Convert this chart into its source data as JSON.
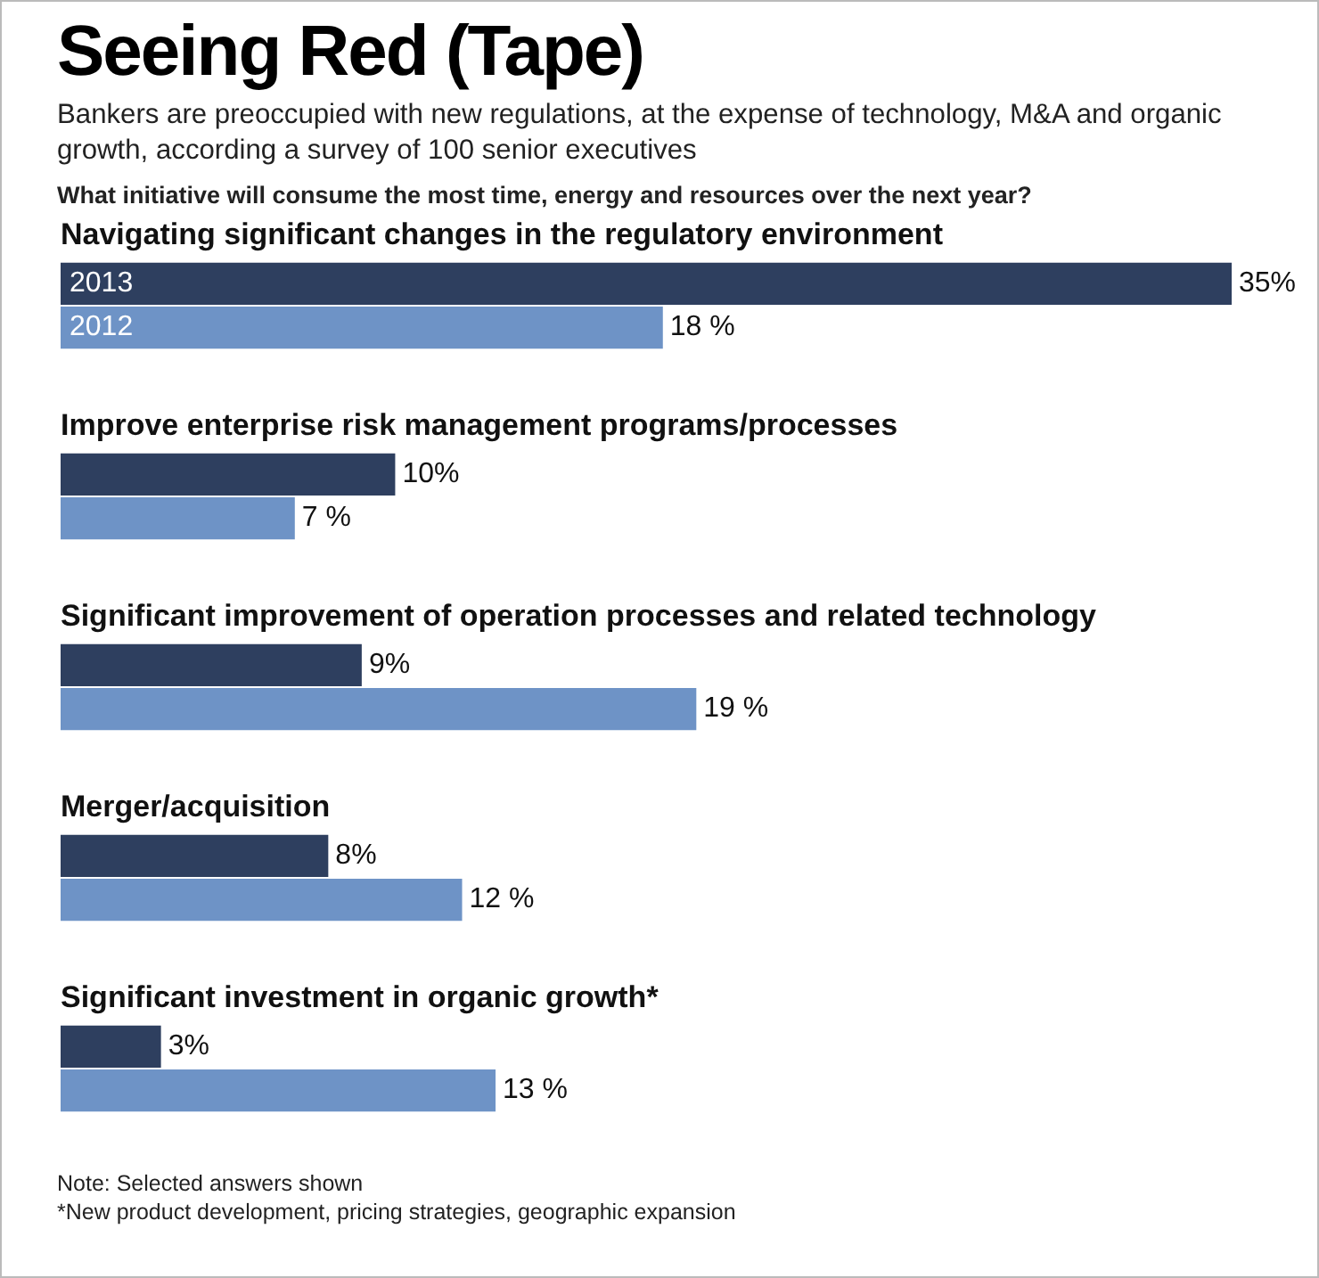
{
  "chart_data": {
    "type": "bar",
    "orientation": "horizontal",
    "title": "Seeing Red (Tape)",
    "subtitle": "Bankers are preoccupied with new regulations, at the expense of technology, M&A and organic growth, according a survey of 100 senior executives",
    "categories": [
      "Navigating significant changes in the regulatory environment",
      "Improve enterprise risk management programs/processes",
      "Significant improvement of operation processes and related technology",
      "Merger/acquisition",
      "Significant investment in organic growth*"
    ],
    "series": [
      {
        "name": "2013",
        "color": "#2e3f5f",
        "values": [
          35,
          10,
          9,
          8,
          3
        ],
        "value_labels": [
          "35%",
          "10%",
          "9%",
          "8%",
          "3%"
        ]
      },
      {
        "name": "2012",
        "color": "#6e93c6",
        "values": [
          18,
          7,
          19,
          12,
          13
        ],
        "value_labels": [
          "18 %",
          "7 %",
          "19 %",
          "12 %",
          "13 %"
        ]
      }
    ],
    "annotations": [
      "What initiative will consume the most time, energy and resources over the next year?",
      "Note: Selected answers shown",
      "*New product development, pricing strategies, geographic expansion"
    ]
  }
}
